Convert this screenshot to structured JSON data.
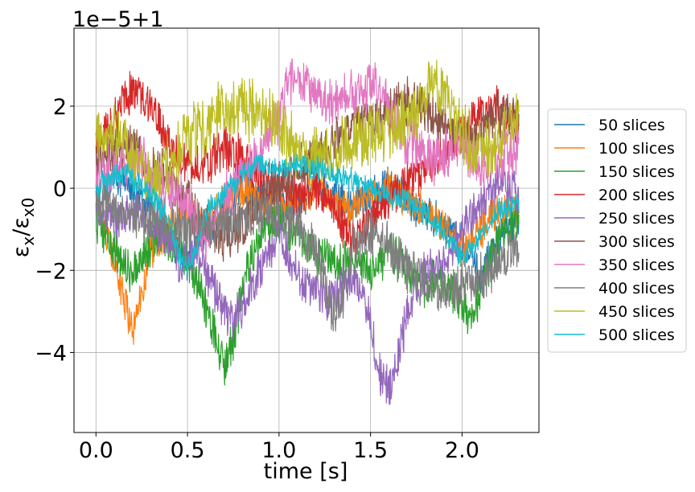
{
  "chart_data": {
    "type": "line",
    "xlabel": "time [s]",
    "ylabel_main": "ε",
    "ylabel_sub": "x",
    "ylabel_sep": "/",
    "ylabel_main2": "ε",
    "ylabel_sub2": "x0",
    "offset_text": "1e−5+1",
    "xlim": [
      -0.12,
      2.42
    ],
    "ylim": [
      -5.95,
      3.9
    ],
    "xticks": [
      0.0,
      0.5,
      1.0,
      1.5,
      2.0
    ],
    "xtick_labels": [
      "0.0",
      "0.5",
      "1.0",
      "1.5",
      "2.0"
    ],
    "yticks": [
      -4,
      -2,
      0,
      2
    ],
    "ytick_labels": [
      "−4",
      "−2",
      "0",
      "2"
    ],
    "grid": true,
    "legend_position": "right-outside",
    "x_range": [
      0.0,
      2.31
    ],
    "series": [
      {
        "name": "50 slices",
        "color": "#1f77b4",
        "noise": 0.8,
        "x": [
          0.0,
          0.1,
          0.2,
          0.3,
          0.4,
          0.5,
          0.6,
          0.7,
          0.8,
          0.9,
          1.0,
          1.1,
          1.2,
          1.3,
          1.4,
          1.5,
          1.6,
          1.7,
          1.8,
          1.9,
          2.0,
          2.1,
          2.2,
          2.31
        ],
        "y": [
          -0.3,
          0.3,
          0.0,
          -0.5,
          -1.2,
          -1.8,
          -1.0,
          -0.6,
          0.0,
          -0.2,
          -0.6,
          -0.3,
          0.1,
          -0.2,
          -0.4,
          -0.2,
          0.1,
          -0.3,
          -0.6,
          -0.9,
          -1.3,
          -2.2,
          -1.2,
          -0.8
        ]
      },
      {
        "name": "100 slices",
        "color": "#ff7f0e",
        "noise": 0.8,
        "x": [
          0.0,
          0.1,
          0.15,
          0.2,
          0.25,
          0.3,
          0.4,
          0.5,
          0.6,
          0.7,
          0.8,
          0.9,
          1.0,
          1.1,
          1.2,
          1.3,
          1.4,
          1.5,
          1.6,
          1.7,
          1.8,
          1.9,
          2.0,
          2.1,
          2.2,
          2.31
        ],
        "y": [
          -0.5,
          -1.8,
          -2.6,
          -3.4,
          -2.5,
          -1.5,
          -1.0,
          -0.6,
          -0.8,
          -0.4,
          0.0,
          -0.3,
          -0.5,
          -0.3,
          0.0,
          -0.4,
          -0.5,
          -0.2,
          0.0,
          -0.3,
          -0.6,
          -1.0,
          -1.5,
          -1.0,
          -0.5,
          -0.5
        ]
      },
      {
        "name": "150 slices",
        "color": "#2ca02c",
        "noise": 0.9,
        "x": [
          0.0,
          0.1,
          0.18,
          0.25,
          0.35,
          0.45,
          0.55,
          0.65,
          0.7,
          0.75,
          0.8,
          0.9,
          1.0,
          1.1,
          1.2,
          1.3,
          1.4,
          1.5,
          1.6,
          1.7,
          1.8,
          1.9,
          2.0,
          2.05,
          2.1,
          2.2,
          2.31
        ],
        "y": [
          -0.8,
          -1.5,
          -2.1,
          -1.8,
          -1.0,
          -1.4,
          -2.2,
          -3.5,
          -4.3,
          -3.8,
          -2.5,
          -1.0,
          -0.8,
          -1.2,
          -1.5,
          -1.7,
          -1.9,
          -2.0,
          -1.5,
          -2.0,
          -2.4,
          -2.2,
          -2.8,
          -3.2,
          -2.5,
          -1.2,
          -0.6
        ]
      },
      {
        "name": "200 slices",
        "color": "#d62728",
        "noise": 0.9,
        "x": [
          0.0,
          0.05,
          0.1,
          0.15,
          0.2,
          0.25,
          0.3,
          0.35,
          0.4,
          0.5,
          0.6,
          0.7,
          0.8,
          0.9,
          1.0,
          1.1,
          1.2,
          1.3,
          1.4,
          1.5,
          1.6,
          1.7,
          1.8,
          1.9,
          2.0,
          2.1,
          2.2,
          2.31
        ],
        "y": [
          1.0,
          1.3,
          1.6,
          2.2,
          2.4,
          2.3,
          2.0,
          1.6,
          1.0,
          0.5,
          0.6,
          1.0,
          0.7,
          0.3,
          0.0,
          -0.2,
          0.0,
          -0.4,
          -1.4,
          -0.7,
          -0.2,
          0.1,
          0.5,
          0.9,
          1.3,
          1.8,
          2.0,
          1.5
        ]
      },
      {
        "name": "250 slices",
        "color": "#9467bd",
        "noise": 0.9,
        "x": [
          0.0,
          0.1,
          0.2,
          0.3,
          0.4,
          0.45,
          0.5,
          0.55,
          0.6,
          0.7,
          0.75,
          0.8,
          0.9,
          1.0,
          1.05,
          1.1,
          1.2,
          1.3,
          1.4,
          1.5,
          1.55,
          1.6,
          1.65,
          1.7,
          1.8,
          1.9,
          2.0,
          2.1,
          2.2,
          2.31
        ],
        "y": [
          -0.5,
          -0.8,
          -0.6,
          -0.8,
          -1.2,
          -2.0,
          -1.7,
          -1.5,
          -2.0,
          -3.0,
          -3.2,
          -2.8,
          -2.0,
          -1.2,
          -1.6,
          -2.2,
          -2.5,
          -2.8,
          -2.0,
          -3.2,
          -4.5,
          -5.0,
          -4.2,
          -3.0,
          -2.0,
          -1.8,
          -1.0,
          -0.4,
          0.1,
          -0.2
        ]
      },
      {
        "name": "300 slices",
        "color": "#8c564b",
        "noise": 1.0,
        "x": [
          0.0,
          0.1,
          0.2,
          0.3,
          0.4,
          0.5,
          0.6,
          0.7,
          0.8,
          0.9,
          1.0,
          1.1,
          1.2,
          1.3,
          1.4,
          1.5,
          1.6,
          1.7,
          1.8,
          1.9,
          2.0,
          2.1,
          2.2,
          2.31
        ],
        "y": [
          0.6,
          0.9,
          1.1,
          0.6,
          0.2,
          -0.4,
          -1.0,
          -1.2,
          -0.9,
          -0.4,
          0.1,
          0.4,
          0.8,
          1.2,
          1.5,
          1.7,
          1.8,
          2.1,
          1.9,
          1.5,
          1.2,
          1.4,
          1.8,
          1.7
        ]
      },
      {
        "name": "350 slices",
        "color": "#e377c2",
        "noise": 1.1,
        "x": [
          0.0,
          0.1,
          0.2,
          0.3,
          0.4,
          0.5,
          0.55,
          0.6,
          0.65,
          0.7,
          0.8,
          0.9,
          1.0,
          1.05,
          1.1,
          1.15,
          1.2,
          1.3,
          1.4,
          1.5,
          1.6,
          1.7,
          1.8,
          1.9,
          2.0,
          2.1,
          2.2,
          2.31
        ],
        "y": [
          0.2,
          0.5,
          0.8,
          0.4,
          -0.1,
          -0.4,
          -0.8,
          -1.4,
          -1.0,
          -0.3,
          0.3,
          0.9,
          1.8,
          2.5,
          2.9,
          2.7,
          2.3,
          2.0,
          2.3,
          2.5,
          2.0,
          1.2,
          0.7,
          0.8,
          1.2,
          0.4,
          0.8,
          0.9
        ]
      },
      {
        "name": "400 slices",
        "color": "#7f7f7f",
        "noise": 1.0,
        "x": [
          0.0,
          0.1,
          0.2,
          0.3,
          0.4,
          0.5,
          0.6,
          0.7,
          0.8,
          0.9,
          1.0,
          1.1,
          1.2,
          1.25,
          1.3,
          1.35,
          1.4,
          1.5,
          1.6,
          1.7,
          1.8,
          1.9,
          2.0,
          2.1,
          2.2,
          2.31
        ],
        "y": [
          -0.3,
          -0.5,
          -0.6,
          -0.8,
          -0.9,
          -1.0,
          -1.0,
          -0.9,
          -0.8,
          -0.6,
          -0.7,
          -0.9,
          -1.5,
          -2.3,
          -3.2,
          -2.6,
          -1.6,
          -1.0,
          -1.5,
          -2.0,
          -2.3,
          -2.5,
          -2.4,
          -2.2,
          -1.8,
          -1.4
        ]
      },
      {
        "name": "450 slices",
        "color": "#bcbd22",
        "noise": 1.3,
        "x": [
          0.0,
          0.1,
          0.2,
          0.3,
          0.4,
          0.5,
          0.6,
          0.7,
          0.8,
          0.9,
          1.0,
          1.1,
          1.2,
          1.3,
          1.4,
          1.5,
          1.6,
          1.7,
          1.8,
          1.85,
          1.9,
          2.0,
          2.1,
          2.2,
          2.31
        ],
        "y": [
          1.2,
          1.3,
          0.8,
          0.2,
          0.5,
          1.2,
          1.6,
          1.9,
          2.0,
          1.8,
          1.4,
          1.0,
          0.8,
          0.9,
          1.1,
          1.3,
          1.4,
          1.8,
          2.2,
          2.5,
          2.2,
          1.4,
          0.9,
          1.2,
          1.6
        ]
      },
      {
        "name": "500 slices",
        "color": "#17becf",
        "noise": 0.5,
        "x": [
          0.0,
          0.05,
          0.1,
          0.15,
          0.2,
          0.3,
          0.4,
          0.45,
          0.5,
          0.55,
          0.6,
          0.7,
          0.8,
          0.9,
          1.0,
          1.1,
          1.2,
          1.3,
          1.4,
          1.5,
          1.6,
          1.7,
          1.8,
          1.9,
          2.0,
          2.1,
          2.2,
          2.31
        ],
        "y": [
          0.0,
          0.2,
          0.3,
          0.4,
          0.2,
          -0.1,
          -0.8,
          -1.6,
          -2.0,
          -1.4,
          -0.6,
          -0.1,
          0.3,
          0.6,
          0.5,
          0.6,
          0.5,
          0.4,
          0.2,
          0.0,
          -0.2,
          -0.3,
          -0.6,
          -1.1,
          -1.7,
          -1.2,
          -0.5,
          -0.4
        ]
      }
    ]
  }
}
